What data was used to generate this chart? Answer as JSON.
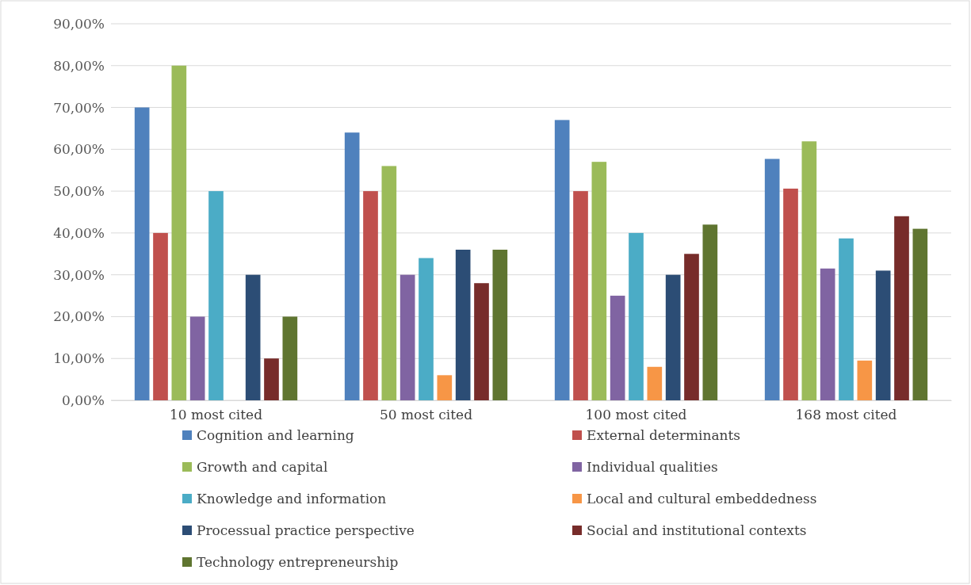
{
  "chart_data": {
    "type": "bar",
    "categories": [
      "10 most cited",
      "50 most cited",
      "100 most cited",
      "168 most cited"
    ],
    "series": [
      {
        "name": "Cognition and learning",
        "color": "#4f81bd",
        "values": [
          70,
          64,
          67,
          57.7
        ]
      },
      {
        "name": "External determinants",
        "color": "#c0504d",
        "values": [
          40,
          50,
          50,
          50.6
        ]
      },
      {
        "name": "Growth and capital",
        "color": "#9bbb59",
        "values": [
          80,
          56,
          57,
          61.9
        ]
      },
      {
        "name": "Individual qualities",
        "color": "#8064a2",
        "values": [
          20,
          30,
          25,
          31.5
        ]
      },
      {
        "name": "Knowledge and information",
        "color": "#4bacc6",
        "values": [
          50,
          34,
          40,
          38.7
        ]
      },
      {
        "name": "Local and cultural embeddedness",
        "color": "#f79646",
        "values": [
          0,
          6,
          8,
          9.5
        ]
      },
      {
        "name": "Processual practice perspective",
        "color": "#2c4d75",
        "values": [
          30,
          36,
          30,
          31
        ]
      },
      {
        "name": "Social and institutional contexts",
        "color": "#772c2a",
        "values": [
          10,
          28,
          35,
          44
        ]
      },
      {
        "name": "Technology entrepreneurship",
        "color": "#5f7530",
        "values": [
          20,
          36,
          42,
          41
        ]
      }
    ],
    "ylim": [
      0,
      90
    ],
    "yticks": [
      {
        "value": 0,
        "label": "0,00%"
      },
      {
        "value": 10,
        "label": "10,00%"
      },
      {
        "value": 20,
        "label": "20,00%"
      },
      {
        "value": 30,
        "label": "30,00%"
      },
      {
        "value": 40,
        "label": "40,00%"
      },
      {
        "value": 50,
        "label": "50,00%"
      },
      {
        "value": 60,
        "label": "60,00%"
      },
      {
        "value": 70,
        "label": "70,00%"
      },
      {
        "value": 80,
        "label": "80,00%"
      },
      {
        "value": 90,
        "label": "90,00%"
      }
    ],
    "grid": "y",
    "legend": "bottom"
  }
}
